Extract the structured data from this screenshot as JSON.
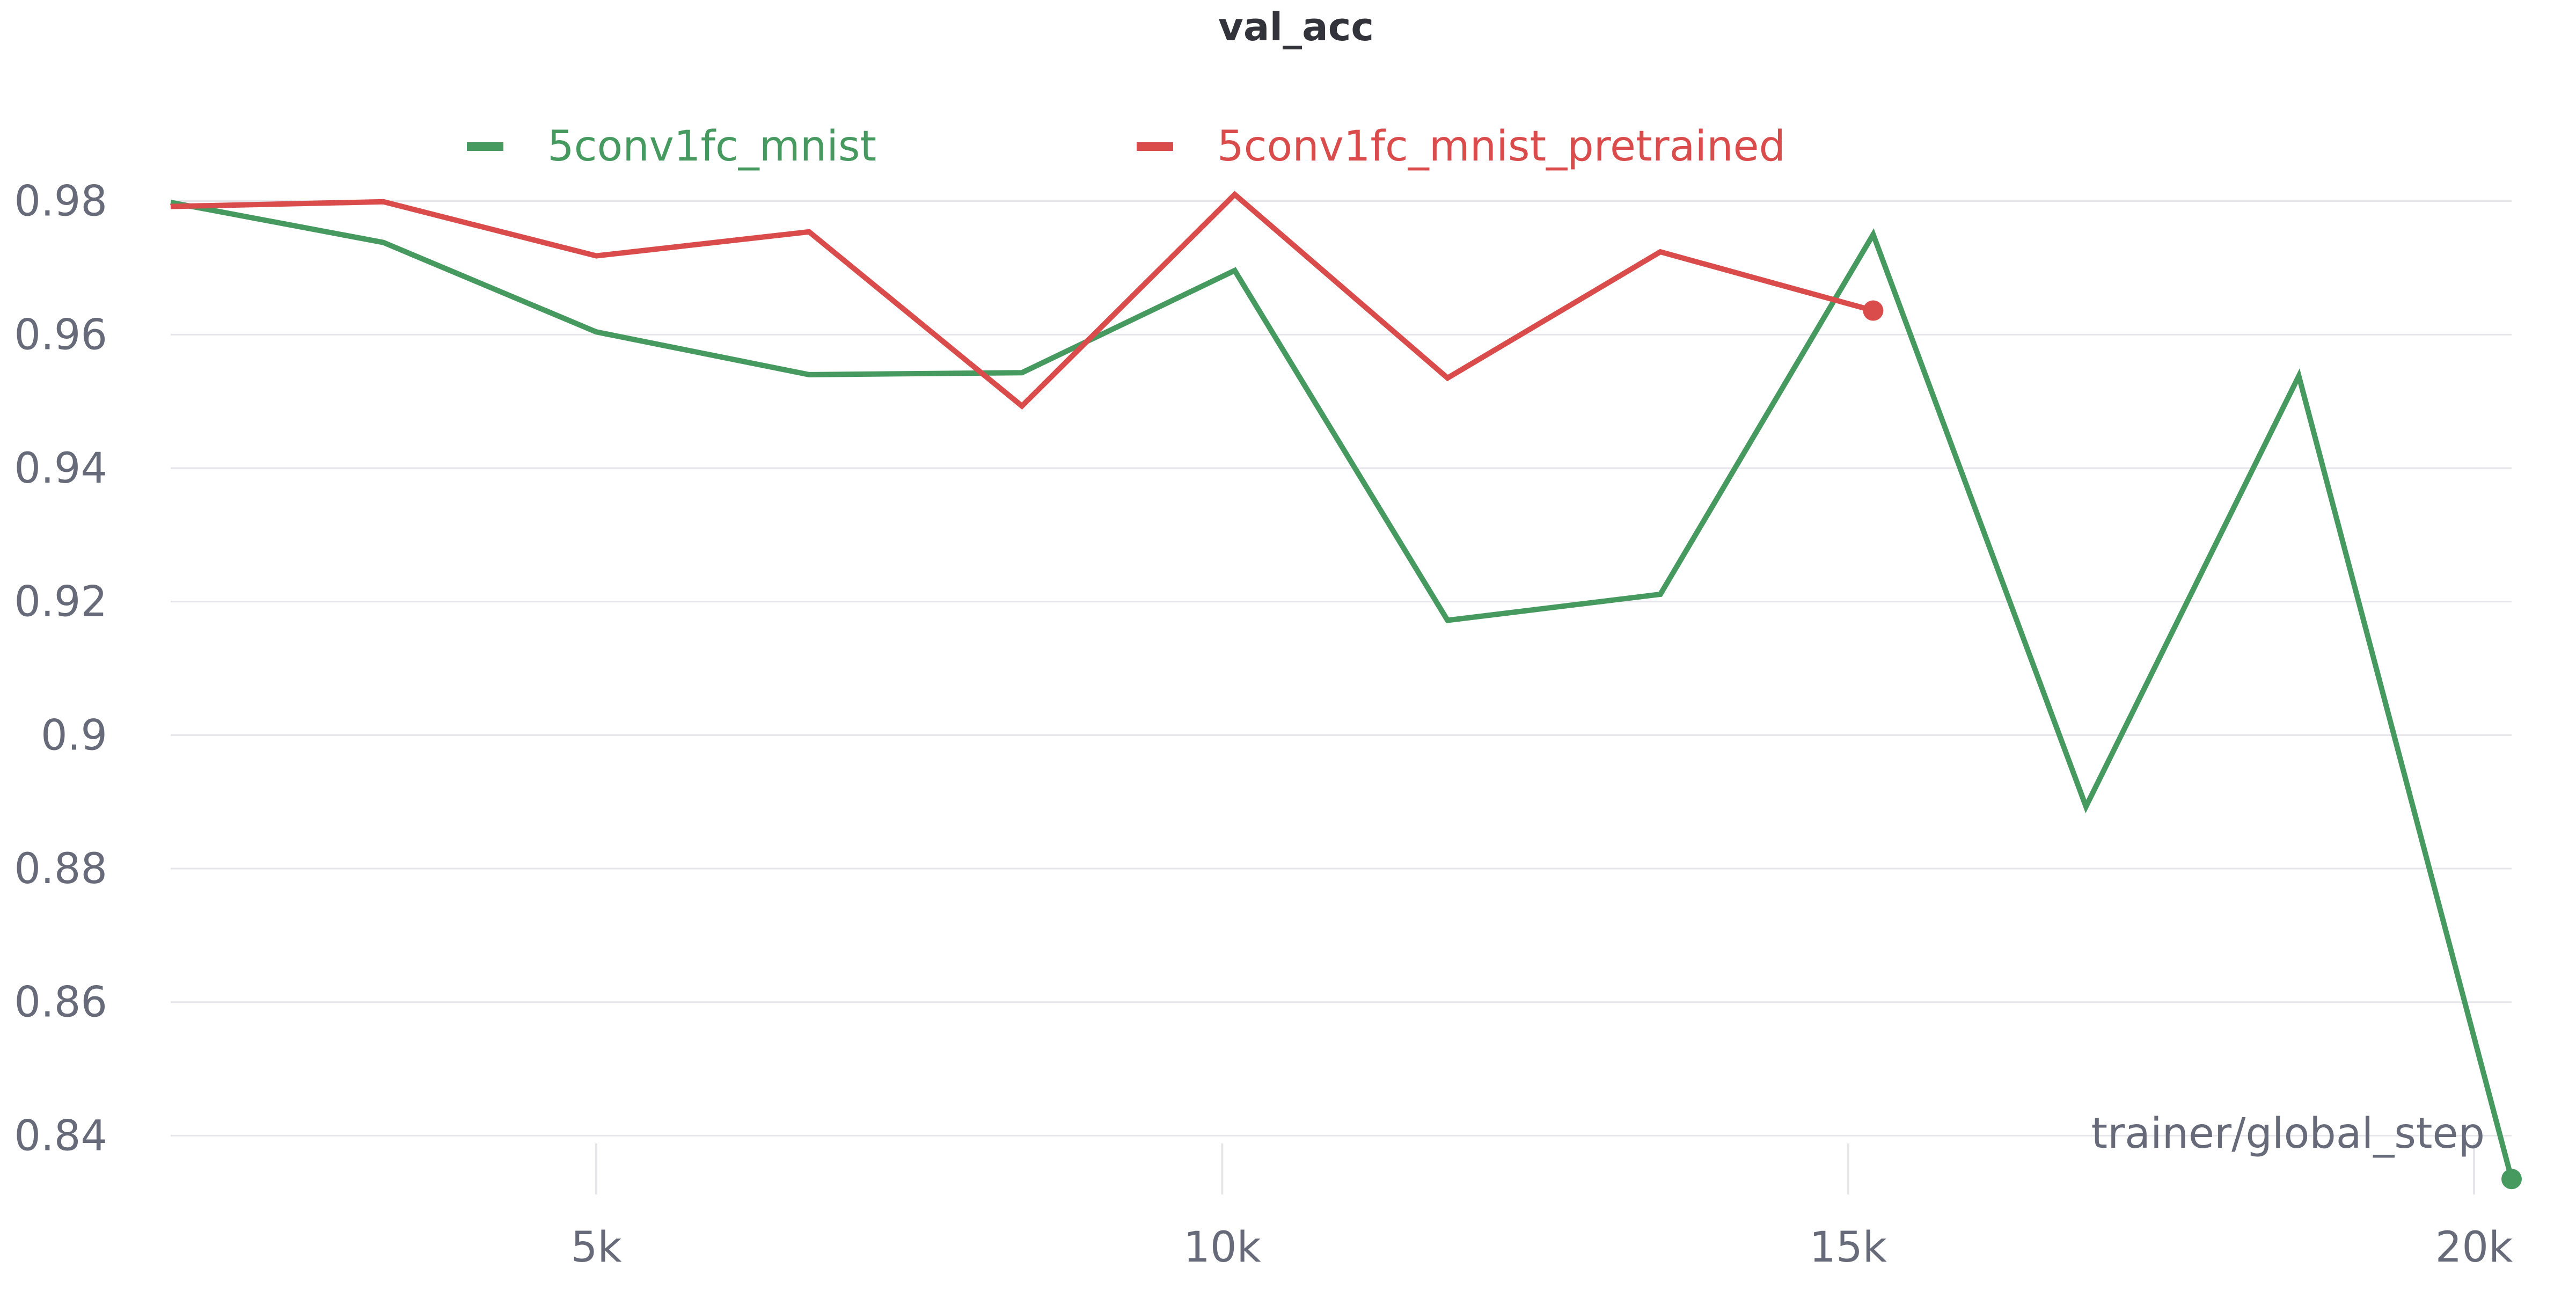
{
  "chart_data": {
    "type": "line",
    "title": "val_acc",
    "xlabel": "trainer/global_step",
    "ylabel": "",
    "xlim": [
      1600,
      20300
    ],
    "ylim": [
      0.834,
      0.986
    ],
    "x_ticks": [
      5000,
      10000,
      15000,
      20000
    ],
    "x_tick_labels": [
      "5k",
      "10k",
      "15k",
      "20k"
    ],
    "y_ticks": [
      0.84,
      0.86,
      0.88,
      0.9,
      0.92,
      0.94,
      0.96,
      0.98
    ],
    "y_tick_labels": [
      "0.84",
      "0.86",
      "0.88",
      "0.9",
      "0.92",
      "0.94",
      "0.96",
      "0.98"
    ],
    "grid": true,
    "legend_position": "top",
    "series": [
      {
        "name": "5conv1fc_mnist",
        "color": "#479a5f",
        "x": [
          1600,
          3300,
          5000,
          6700,
          8400,
          10100,
          11800,
          13500,
          15200,
          16900,
          18600,
          20300
        ],
        "values": [
          0.9798,
          0.9738,
          0.9604,
          0.954,
          0.9543,
          0.9696,
          0.9172,
          0.9211,
          0.975,
          0.8893,
          0.9538,
          0.8335
        ]
      },
      {
        "name": "5conv1fc_mnist_pretrained",
        "color": "#da4c4c",
        "x": [
          1600,
          3300,
          5000,
          6700,
          8400,
          10100,
          11800,
          13500,
          15200
        ],
        "values": [
          0.9792,
          0.9799,
          0.9718,
          0.9754,
          0.9493,
          0.981,
          0.9535,
          0.9724,
          0.9636
        ]
      }
    ]
  }
}
